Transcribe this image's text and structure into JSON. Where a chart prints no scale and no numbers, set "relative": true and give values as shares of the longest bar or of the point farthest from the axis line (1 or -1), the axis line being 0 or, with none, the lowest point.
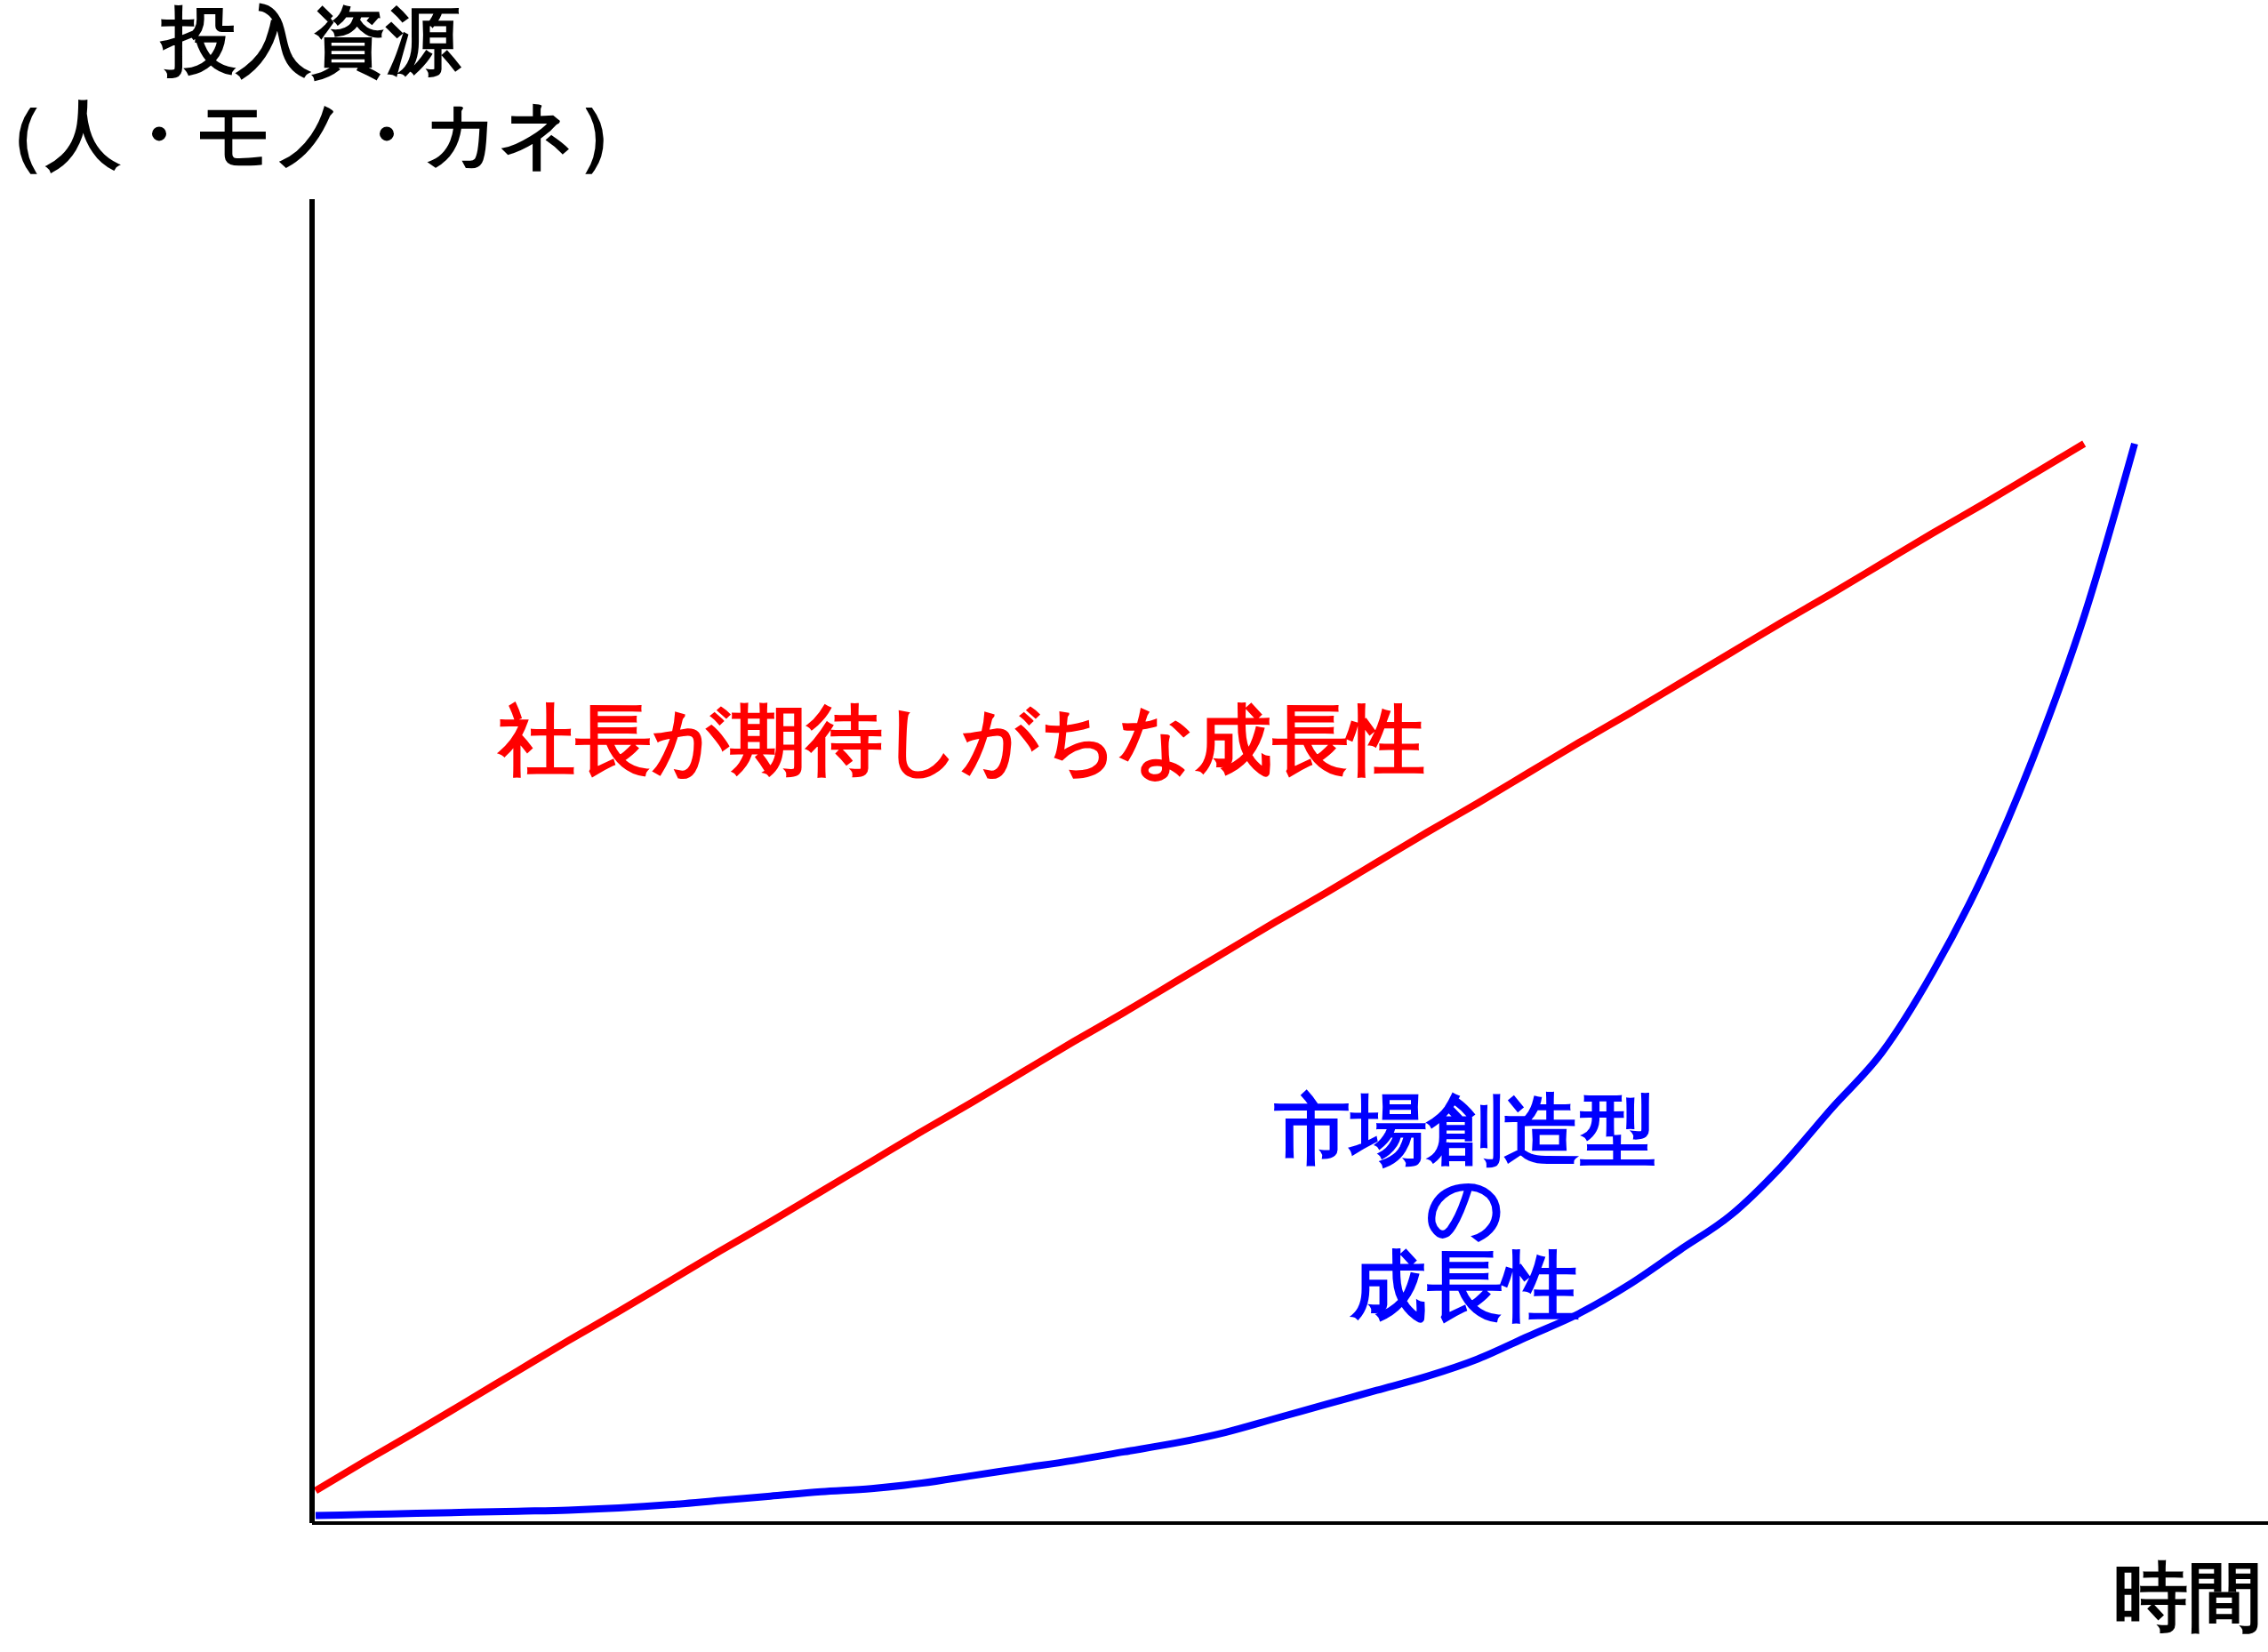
{
  "chart_data": {
    "type": "line",
    "relative": true,
    "xlabel": "時間",
    "ylabel": "投入資源（人・モノ・カネ）",
    "categories": [
      null,
      null,
      null,
      null,
      null,
      null,
      null,
      null,
      null,
      null,
      null,
      null,
      null,
      null,
      null,
      null,
      null,
      null,
      null,
      null,
      null,
      null,
      null,
      null,
      null,
      null,
      null,
      null,
      null,
      null,
      null,
      null,
      null,
      null,
      null,
      null,
      null
    ],
    "series": [
      {
        "name": "社長が期待しがちな成長性",
        "color": "#ff0000",
        "values": [
          0.03,
          0.058,
          0.085,
          0.113,
          0.141,
          0.169,
          0.196,
          0.224,
          0.252,
          0.279,
          0.307,
          0.335,
          0.363,
          0.39,
          0.418,
          0.446,
          0.473,
          0.501,
          0.529,
          0.557,
          0.584,
          0.612,
          0.64,
          0.667,
          0.695,
          0.723,
          0.75,
          0.778,
          0.806,
          0.834,
          0.861,
          0.889,
          0.917,
          0.944,
          0.972,
          1,
          null
        ]
      },
      {
        "name": "市場創造型の成長性",
        "color": "#0000ff",
        "values": [
          0.007,
          0.008,
          0.009,
          0.01,
          0.011,
          0.012,
          0.014,
          0.017,
          0.021,
          0.025,
          0.029,
          0.032,
          0.037,
          0.044,
          0.051,
          0.058,
          0.066,
          0.074,
          0.084,
          0.097,
          0.11,
          0.123,
          0.136,
          0.152,
          0.173,
          0.194,
          0.221,
          0.253,
          0.285,
          0.33,
          0.384,
          0.436,
          0.51,
          0.6,
          0.71,
          0.84,
          1
        ]
      }
    ]
  }
}
